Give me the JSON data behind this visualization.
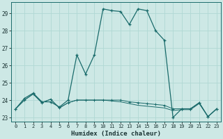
{
  "xlabel": "Humidex (Indice chaleur)",
  "background_color": "#cde8e5",
  "plot_bg_color": "#cde8e5",
  "line_color": "#1a6b6b",
  "grid_color": "#b0d8d4",
  "xlim": [
    -0.5,
    23.5
  ],
  "ylim": [
    22.75,
    29.65
  ],
  "xticks": [
    0,
    1,
    2,
    3,
    4,
    5,
    6,
    7,
    8,
    9,
    10,
    11,
    12,
    13,
    14,
    15,
    16,
    17,
    18,
    19,
    20,
    21,
    22,
    23
  ],
  "yticks": [
    23,
    24,
    25,
    26,
    27,
    28,
    29
  ],
  "series1": [
    [
      0,
      23.5
    ],
    [
      1,
      24.1
    ],
    [
      2,
      24.4
    ],
    [
      3,
      23.9
    ],
    [
      4,
      23.9
    ],
    [
      5,
      23.6
    ],
    [
      6,
      24.0
    ],
    [
      7,
      26.6
    ],
    [
      8,
      25.5
    ],
    [
      9,
      26.6
    ],
    [
      10,
      29.25
    ],
    [
      11,
      29.15
    ],
    [
      12,
      29.1
    ],
    [
      13,
      28.35
    ],
    [
      14,
      29.25
    ],
    [
      15,
      29.15
    ],
    [
      16,
      28.0
    ],
    [
      17,
      27.45
    ],
    [
      18,
      23.0
    ],
    [
      19,
      23.5
    ],
    [
      20,
      23.5
    ],
    [
      21,
      23.85
    ],
    [
      22,
      23.05
    ],
    [
      23,
      23.5
    ]
  ],
  "series2": [
    [
      0,
      23.5
    ],
    [
      1,
      24.0
    ],
    [
      2,
      24.35
    ],
    [
      3,
      23.85
    ],
    [
      4,
      24.05
    ],
    [
      5,
      23.55
    ],
    [
      6,
      23.85
    ],
    [
      7,
      24.0
    ],
    [
      8,
      24.0
    ],
    [
      9,
      24.0
    ],
    [
      10,
      24.0
    ],
    [
      11,
      24.0
    ],
    [
      12,
      24.0
    ],
    [
      13,
      23.9
    ],
    [
      14,
      23.85
    ],
    [
      15,
      23.8
    ],
    [
      16,
      23.75
    ],
    [
      17,
      23.7
    ],
    [
      18,
      23.5
    ],
    [
      19,
      23.5
    ],
    [
      20,
      23.5
    ],
    [
      21,
      23.85
    ],
    [
      22,
      23.05
    ],
    [
      23,
      23.5
    ]
  ],
  "series3": [
    [
      0,
      23.5
    ],
    [
      1,
      24.0
    ],
    [
      2,
      24.35
    ],
    [
      3,
      23.85
    ],
    [
      4,
      24.05
    ],
    [
      5,
      23.55
    ],
    [
      6,
      23.85
    ],
    [
      7,
      24.0
    ],
    [
      8,
      24.0
    ],
    [
      9,
      24.0
    ],
    [
      10,
      24.0
    ],
    [
      11,
      23.95
    ],
    [
      12,
      23.9
    ],
    [
      13,
      23.8
    ],
    [
      14,
      23.7
    ],
    [
      15,
      23.65
    ],
    [
      16,
      23.6
    ],
    [
      17,
      23.55
    ],
    [
      18,
      23.4
    ],
    [
      19,
      23.45
    ],
    [
      20,
      23.45
    ],
    [
      21,
      23.8
    ],
    [
      22,
      23.05
    ],
    [
      23,
      23.5
    ]
  ],
  "series4": [
    [
      0,
      23.5
    ],
    [
      2,
      24.35
    ],
    [
      6,
      24.05
    ],
    [
      7,
      23.6
    ],
    [
      8,
      24.0
    ],
    [
      9,
      24.0
    ],
    [
      10,
      24.0
    ],
    [
      11,
      23.9
    ],
    [
      12,
      23.85
    ],
    [
      13,
      23.8
    ],
    [
      14,
      23.75
    ],
    [
      15,
      23.7
    ],
    [
      16,
      23.65
    ],
    [
      17,
      23.6
    ],
    [
      18,
      23.5
    ],
    [
      19,
      23.5
    ],
    [
      20,
      23.5
    ],
    [
      21,
      23.8
    ],
    [
      22,
      23.05
    ],
    [
      23,
      23.5
    ]
  ]
}
